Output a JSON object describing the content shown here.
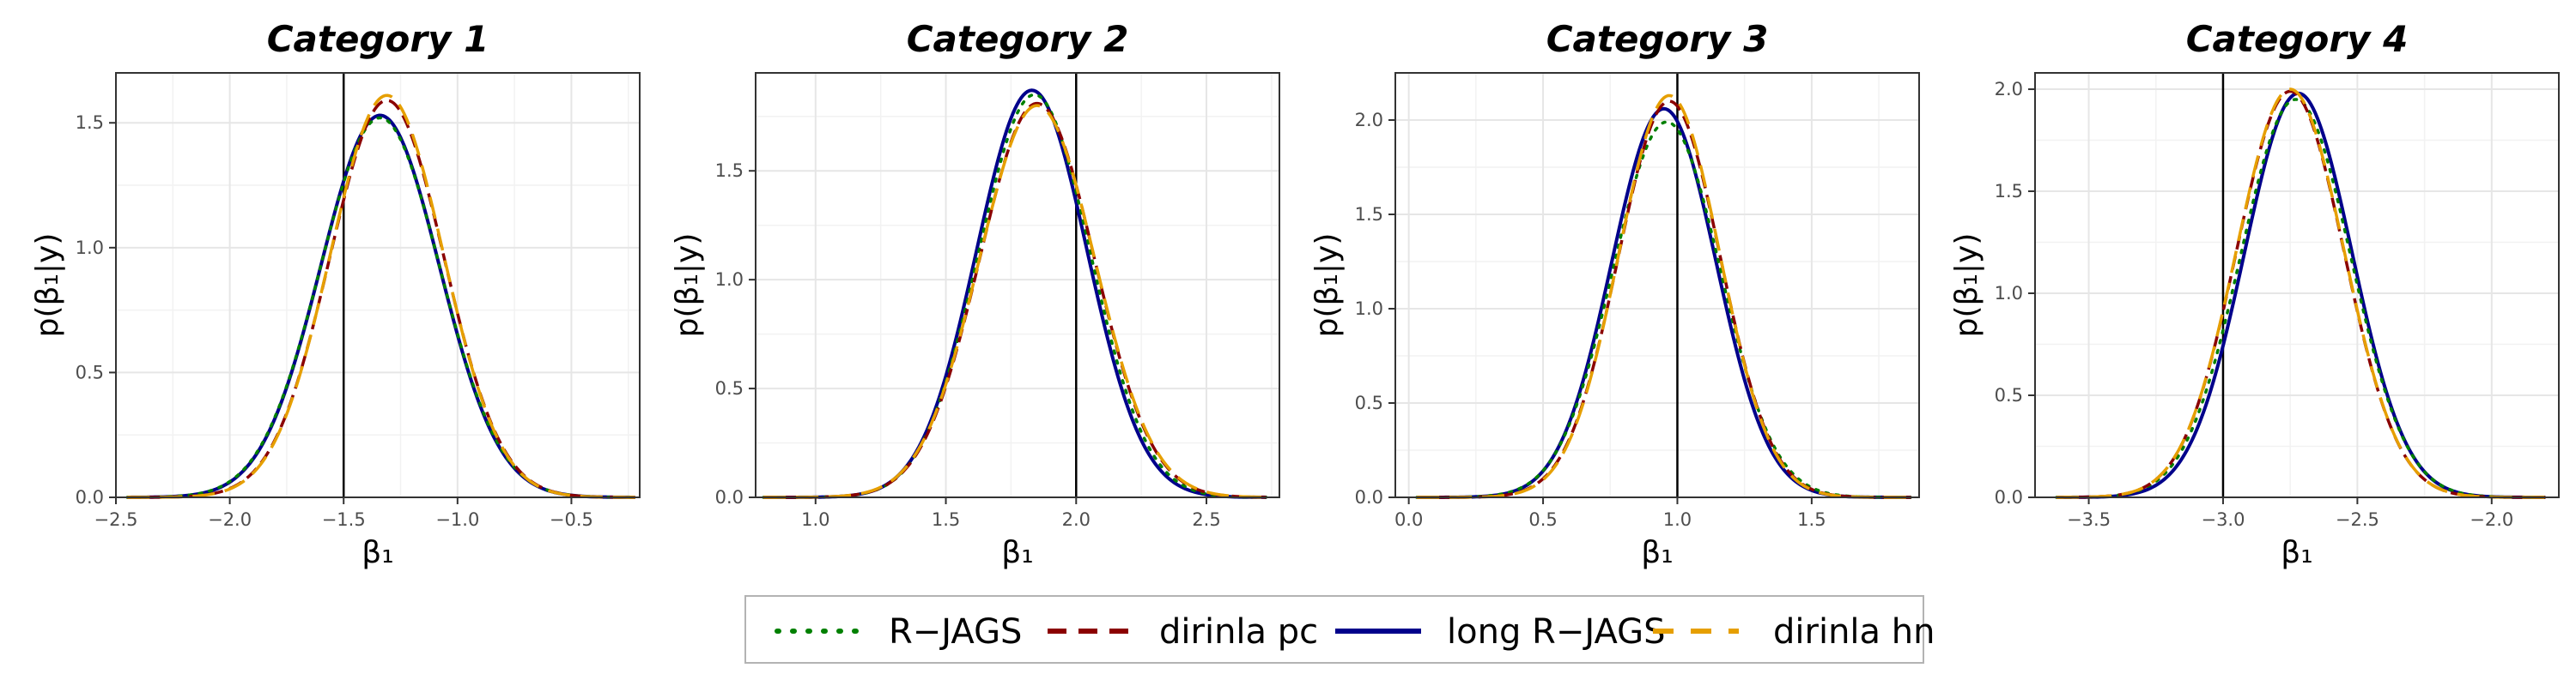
{
  "chart_data": [
    {
      "type": "line",
      "title": "Category 1",
      "xlabel": "β₁",
      "ylabel": "p(β₁|y)",
      "xlim": [
        -2.5,
        -0.2
      ],
      "ylim": [
        0,
        1.7
      ],
      "xticks": [
        -2.5,
        -2.0,
        -1.5,
        -1.0,
        -0.5
      ],
      "xtick_labels": [
        "−2.5",
        "−2.0",
        "−1.5",
        "−1.0",
        "−0.5"
      ],
      "yticks": [
        0,
        0.5,
        1.0,
        1.5
      ],
      "ytick_labels": [
        "0.0",
        "0.5",
        "1.0",
        "1.5"
      ],
      "vline": -1.5,
      "x_range": [
        -2.45,
        -0.22
      ],
      "grid": true,
      "series": [
        {
          "name": "R−JAGS",
          "mean": -1.34,
          "sd": 0.262,
          "peak": 1.52
        },
        {
          "name": "dirinla pc",
          "mean": -1.31,
          "sd": 0.25,
          "peak": 1.59
        },
        {
          "name": "long R−JAGS",
          "mean": -1.34,
          "sd": 0.26,
          "peak": 1.53
        },
        {
          "name": "dirinla hn",
          "mean": -1.31,
          "sd": 0.248,
          "peak": 1.61
        }
      ]
    },
    {
      "type": "line",
      "title": "Category 2",
      "xlabel": "β₁",
      "ylabel": "p(β₁|y)",
      "xlim": [
        0.77,
        2.78
      ],
      "ylim": [
        0,
        1.95
      ],
      "xticks": [
        1.0,
        1.5,
        2.0,
        2.5
      ],
      "xtick_labels": [
        "1.0",
        "1.5",
        "2.0",
        "2.5"
      ],
      "yticks": [
        0,
        0.5,
        1.0,
        1.5
      ],
      "ytick_labels": [
        "0.0",
        "0.5",
        "1.0",
        "1.5"
      ],
      "vline": 2.0,
      "x_range": [
        0.8,
        2.73
      ],
      "grid": true,
      "series": [
        {
          "name": "R−JAGS",
          "mean": 1.84,
          "sd": 0.215,
          "peak": 1.85
        },
        {
          "name": "dirinla pc",
          "mean": 1.85,
          "sd": 0.22,
          "peak": 1.81
        },
        {
          "name": "long R−JAGS",
          "mean": 1.83,
          "sd": 0.212,
          "peak": 1.87
        },
        {
          "name": "dirinla hn",
          "mean": 1.85,
          "sd": 0.222,
          "peak": 1.8
        }
      ]
    },
    {
      "type": "line",
      "title": "Category 3",
      "xlabel": "β₁",
      "ylabel": "p(β₁|y)",
      "xlim": [
        -0.05,
        1.9
      ],
      "ylim": [
        0,
        2.25
      ],
      "xticks": [
        0.0,
        0.5,
        1.0,
        1.5
      ],
      "xtick_labels": [
        "0.0",
        "0.5",
        "1.0",
        "1.5"
      ],
      "yticks": [
        0,
        0.5,
        1.0,
        1.5,
        2.0
      ],
      "ytick_labels": [
        "0.0",
        "0.5",
        "1.0",
        "1.5",
        "2.0"
      ],
      "vline": 1.0,
      "x_range": [
        0.03,
        1.87
      ],
      "grid": true,
      "series": [
        {
          "name": "R−JAGS",
          "mean": 0.96,
          "sd": 0.2,
          "peak": 1.99
        },
        {
          "name": "dirinla pc",
          "mean": 0.97,
          "sd": 0.19,
          "peak": 2.1
        },
        {
          "name": "long R−JAGS",
          "mean": 0.95,
          "sd": 0.194,
          "peak": 2.06
        },
        {
          "name": "dirinla hn",
          "mean": 0.97,
          "sd": 0.188,
          "peak": 2.13
        }
      ]
    },
    {
      "type": "line",
      "title": "Category 4",
      "xlabel": "β₁",
      "ylabel": "p(β₁|y)",
      "xlim": [
        -3.7,
        -1.75
      ],
      "ylim": [
        0,
        2.08
      ],
      "xticks": [
        -3.5,
        -3.0,
        -2.5,
        -2.0
      ],
      "xtick_labels": [
        "−3.5",
        "−3.0",
        "−2.5",
        "−2.0"
      ],
      "yticks": [
        0,
        0.5,
        1.0,
        1.5,
        2.0
      ],
      "ytick_labels": [
        "0.0",
        "0.5",
        "1.0",
        "1.5",
        "2.0"
      ],
      "vline": -3.0,
      "x_range": [
        -3.62,
        -1.8
      ],
      "grid": true,
      "series": [
        {
          "name": "R−JAGS",
          "mean": -2.73,
          "sd": 0.205,
          "peak": 1.95
        },
        {
          "name": "dirinla pc",
          "mean": -2.75,
          "sd": 0.2,
          "peak": 1.99
        },
        {
          "name": "long R−JAGS",
          "mean": -2.72,
          "sd": 0.2,
          "peak": 1.98
        },
        {
          "name": "dirinla hn",
          "mean": -2.75,
          "sd": 0.2,
          "peak": 2.0
        }
      ]
    }
  ],
  "legend": {
    "position": "bottom",
    "items": [
      {
        "label": "R−JAGS",
        "color": "#008000",
        "dash": "dotted"
      },
      {
        "label": "dirinla pc",
        "color": "#8b0000",
        "dash": "dashed"
      },
      {
        "label": "long R−JAGS",
        "color": "#00008b",
        "dash": "solid"
      },
      {
        "label": "dirinla hn",
        "color": "#e69f00",
        "dash": "longdash"
      }
    ]
  }
}
